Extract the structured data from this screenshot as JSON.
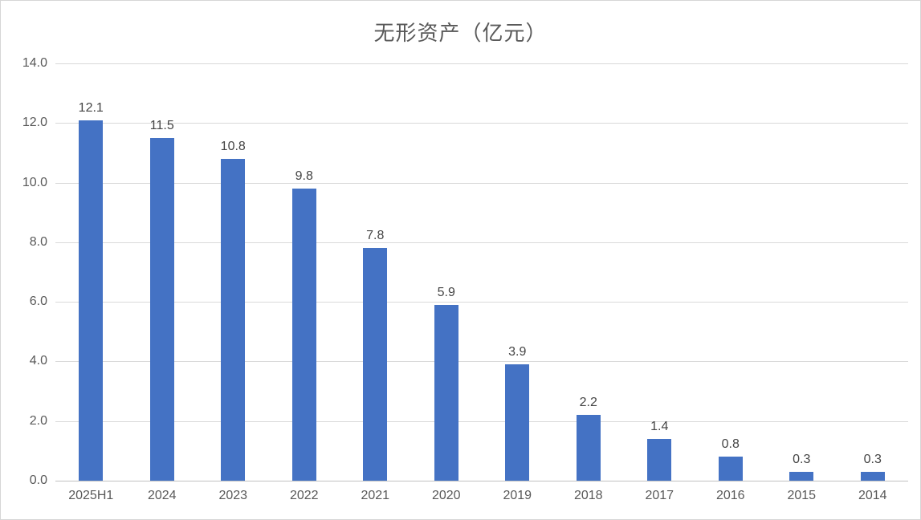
{
  "chart_data": {
    "type": "bar",
    "title": "无形资产（亿元）",
    "categories": [
      "2025H1",
      "2024",
      "2023",
      "2022",
      "2021",
      "2020",
      "2019",
      "2018",
      "2017",
      "2016",
      "2015",
      "2014"
    ],
    "values": [
      12.1,
      11.5,
      10.8,
      9.8,
      7.8,
      5.9,
      3.9,
      2.2,
      1.4,
      0.8,
      0.3,
      0.3
    ],
    "data_labels": [
      "12.1",
      "11.5",
      "10.8",
      "9.8",
      "7.8",
      "5.9",
      "3.9",
      "2.2",
      "1.4",
      "0.8",
      "0.3",
      "0.3"
    ],
    "y_tick_values": [
      14,
      12,
      10,
      8,
      6,
      4,
      2,
      0
    ],
    "y_tick_labels": [
      "14.0",
      "12.0",
      "10.0",
      "8.0",
      "6.0",
      "4.0",
      "2.0",
      "0.0"
    ],
    "ylim": [
      0,
      14
    ],
    "xlabel": "",
    "ylabel": "",
    "grid": true,
    "legend": "none",
    "colors": {
      "bar": "#4472C4",
      "gridline": "#D9D9D9",
      "axis_line": "#C0C0C0",
      "tick_label": "#595959",
      "data_label": "#444444",
      "title": "#595959",
      "chart_border": "#D6D6D6",
      "background": "#FFFFFF"
    }
  }
}
